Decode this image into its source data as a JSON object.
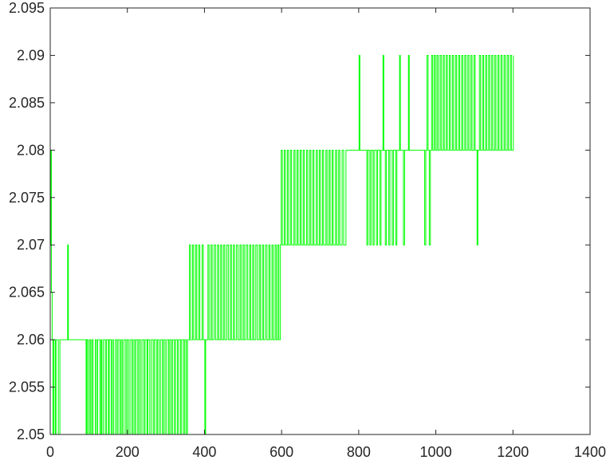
{
  "chart_data": {
    "type": "line",
    "title": "",
    "xlabel": "",
    "ylabel": "",
    "xlim": [
      0,
      1400
    ],
    "ylim": [
      2.05,
      2.095
    ],
    "x_ticks": [
      "0",
      "200",
      "400",
      "600",
      "800",
      "1000",
      "1200",
      "1400"
    ],
    "y_ticks": [
      "2.05",
      "2.055",
      "2.06",
      "2.065",
      "2.07",
      "2.075",
      "2.08",
      "2.085",
      "2.09",
      "2.095"
    ],
    "grid": false,
    "legend": "none",
    "line_color": "#00ff00",
    "x_start": 1,
    "x_step": 1,
    "levels": [
      2.05,
      2.06,
      2.07,
      2.08,
      2.09
    ],
    "segments": [
      [
        0,
        2.07
      ],
      [
        1,
        2.08
      ],
      [
        2,
        2.065
      ],
      [
        4,
        2.06
      ],
      [
        6,
        2.05
      ],
      [
        8,
        2.06
      ],
      [
        12,
        2.05
      ],
      [
        14,
        2.06
      ],
      [
        20,
        2.05
      ],
      [
        24,
        2.06
      ],
      [
        44,
        2.07
      ],
      [
        46,
        2.06
      ],
      [
        92,
        2.05
      ],
      [
        94,
        2.06
      ],
      [
        97,
        2.05
      ],
      [
        101,
        2.06
      ],
      [
        104,
        2.05
      ],
      [
        107,
        2.06
      ],
      [
        110,
        2.05
      ],
      [
        116,
        2.06
      ],
      [
        119,
        2.05
      ],
      [
        122,
        2.06
      ],
      [
        128,
        2.05
      ],
      [
        131,
        2.06
      ],
      [
        133,
        2.05
      ],
      [
        137,
        2.06
      ],
      [
        142,
        2.05
      ],
      [
        145,
        2.06
      ],
      [
        150,
        2.05
      ],
      [
        152,
        2.06
      ],
      [
        157,
        2.05
      ],
      [
        160,
        2.06
      ],
      [
        163,
        2.05
      ],
      [
        168,
        2.06
      ],
      [
        172,
        2.05
      ],
      [
        175,
        2.06
      ],
      [
        180,
        2.05
      ],
      [
        183,
        2.06
      ],
      [
        186,
        2.05
      ],
      [
        190,
        2.06
      ],
      [
        195,
        2.05
      ],
      [
        198,
        2.06
      ],
      [
        202,
        2.05
      ],
      [
        206,
        2.06
      ],
      [
        211,
        2.05
      ],
      [
        214,
        2.06
      ],
      [
        218,
        2.05
      ],
      [
        221,
        2.06
      ],
      [
        226,
        2.05
      ],
      [
        229,
        2.06
      ],
      [
        233,
        2.05
      ],
      [
        237,
        2.06
      ],
      [
        242,
        2.05
      ],
      [
        245,
        2.06
      ],
      [
        250,
        2.05
      ],
      [
        252,
        2.06
      ],
      [
        257,
        2.05
      ],
      [
        261,
        2.06
      ],
      [
        266,
        2.05
      ],
      [
        269,
        2.06
      ],
      [
        274,
        2.05
      ],
      [
        277,
        2.06
      ],
      [
        281,
        2.05
      ],
      [
        285,
        2.06
      ],
      [
        290,
        2.05
      ],
      [
        293,
        2.06
      ],
      [
        297,
        2.05
      ],
      [
        301,
        2.06
      ],
      [
        306,
        2.05
      ],
      [
        309,
        2.06
      ],
      [
        313,
        2.05
      ],
      [
        316,
        2.06
      ],
      [
        321,
        2.05
      ],
      [
        324,
        2.06
      ],
      [
        329,
        2.05
      ],
      [
        332,
        2.06
      ],
      [
        337,
        2.05
      ],
      [
        340,
        2.06
      ],
      [
        345,
        2.05
      ],
      [
        348,
        2.06
      ],
      [
        352,
        2.05
      ],
      [
        355,
        2.06
      ],
      [
        360,
        2.07
      ],
      [
        363,
        2.06
      ],
      [
        368,
        2.07
      ],
      [
        371,
        2.06
      ],
      [
        376,
        2.07
      ],
      [
        379,
        2.06
      ],
      [
        384,
        2.07
      ],
      [
        387,
        2.06
      ],
      [
        393,
        2.07
      ],
      [
        396,
        2.06
      ],
      [
        400,
        2.05
      ],
      [
        402,
        2.06
      ],
      [
        408,
        2.07
      ],
      [
        411,
        2.06
      ],
      [
        416,
        2.07
      ],
      [
        419,
        2.06
      ],
      [
        424,
        2.07
      ],
      [
        428,
        2.06
      ],
      [
        433,
        2.07
      ],
      [
        436,
        2.06
      ],
      [
        441,
        2.07
      ],
      [
        444,
        2.06
      ],
      [
        449,
        2.07
      ],
      [
        452,
        2.06
      ],
      [
        457,
        2.07
      ],
      [
        461,
        2.06
      ],
      [
        466,
        2.07
      ],
      [
        469,
        2.06
      ],
      [
        474,
        2.07
      ],
      [
        477,
        2.06
      ],
      [
        482,
        2.07
      ],
      [
        486,
        2.06
      ],
      [
        491,
        2.07
      ],
      [
        494,
        2.06
      ],
      [
        499,
        2.07
      ],
      [
        502,
        2.06
      ],
      [
        507,
        2.07
      ],
      [
        511,
        2.06
      ],
      [
        516,
        2.07
      ],
      [
        519,
        2.06
      ],
      [
        524,
        2.07
      ],
      [
        527,
        2.06
      ],
      [
        532,
        2.07
      ],
      [
        536,
        2.06
      ],
      [
        541,
        2.07
      ],
      [
        544,
        2.06
      ],
      [
        549,
        2.07
      ],
      [
        552,
        2.06
      ],
      [
        557,
        2.07
      ],
      [
        561,
        2.06
      ],
      [
        566,
        2.07
      ],
      [
        569,
        2.06
      ],
      [
        574,
        2.07
      ],
      [
        577,
        2.06
      ],
      [
        582,
        2.07
      ],
      [
        585,
        2.06
      ],
      [
        589,
        2.07
      ],
      [
        592,
        2.06
      ],
      [
        596,
        2.07
      ],
      [
        598,
        2.08
      ],
      [
        601,
        2.07
      ],
      [
        606,
        2.08
      ],
      [
        609,
        2.07
      ],
      [
        614,
        2.08
      ],
      [
        617,
        2.07
      ],
      [
        622,
        2.08
      ],
      [
        625,
        2.07
      ],
      [
        631,
        2.08
      ],
      [
        634,
        2.07
      ],
      [
        639,
        2.08
      ],
      [
        642,
        2.07
      ],
      [
        647,
        2.08
      ],
      [
        650,
        2.07
      ],
      [
        655,
        2.08
      ],
      [
        658,
        2.07
      ],
      [
        664,
        2.08
      ],
      [
        667,
        2.07
      ],
      [
        672,
        2.08
      ],
      [
        675,
        2.07
      ],
      [
        680,
        2.08
      ],
      [
        683,
        2.07
      ],
      [
        689,
        2.08
      ],
      [
        692,
        2.07
      ],
      [
        697,
        2.08
      ],
      [
        700,
        2.07
      ],
      [
        705,
        2.08
      ],
      [
        708,
        2.07
      ],
      [
        714,
        2.08
      ],
      [
        717,
        2.07
      ],
      [
        722,
        2.08
      ],
      [
        725,
        2.07
      ],
      [
        730,
        2.08
      ],
      [
        733,
        2.07
      ],
      [
        739,
        2.08
      ],
      [
        742,
        2.07
      ],
      [
        747,
        2.08
      ],
      [
        750,
        2.07
      ],
      [
        756,
        2.08
      ],
      [
        760,
        2.07
      ],
      [
        766,
        2.08
      ],
      [
        820,
        2.07
      ],
      [
        823,
        2.08
      ],
      [
        800,
        2.09
      ],
      [
        802,
        2.08
      ],
      [
        828,
        2.07
      ],
      [
        831,
        2.08
      ],
      [
        836,
        2.07
      ],
      [
        839,
        2.08
      ],
      [
        845,
        2.07
      ],
      [
        848,
        2.08
      ],
      [
        854,
        2.07
      ],
      [
        857,
        2.08
      ],
      [
        862,
        2.09
      ],
      [
        864,
        2.08
      ],
      [
        868,
        2.07
      ],
      [
        871,
        2.08
      ],
      [
        877,
        2.07
      ],
      [
        880,
        2.08
      ],
      [
        886,
        2.07
      ],
      [
        889,
        2.08
      ],
      [
        895,
        2.07
      ],
      [
        898,
        2.08
      ],
      [
        905,
        2.09
      ],
      [
        907,
        2.08
      ],
      [
        915,
        2.07
      ],
      [
        918,
        2.08
      ],
      [
        928,
        2.09
      ],
      [
        930,
        2.08
      ],
      [
        970,
        2.07
      ],
      [
        973,
        2.08
      ],
      [
        976,
        2.09
      ],
      [
        979,
        2.08
      ],
      [
        982,
        2.07
      ],
      [
        985,
        2.08
      ],
      [
        988,
        2.09
      ],
      [
        991,
        2.08
      ],
      [
        995,
        2.09
      ],
      [
        998,
        2.08
      ],
      [
        1002,
        2.09
      ],
      [
        1005,
        2.08
      ],
      [
        1010,
        2.09
      ],
      [
        1013,
        2.08
      ],
      [
        1018,
        2.09
      ],
      [
        1021,
        2.08
      ],
      [
        1026,
        2.09
      ],
      [
        1029,
        2.08
      ],
      [
        1034,
        2.09
      ],
      [
        1037,
        2.08
      ],
      [
        1042,
        2.09
      ],
      [
        1045,
        2.08
      ],
      [
        1050,
        2.09
      ],
      [
        1053,
        2.08
      ],
      [
        1058,
        2.09
      ],
      [
        1061,
        2.08
      ],
      [
        1066,
        2.09
      ],
      [
        1069,
        2.08
      ],
      [
        1074,
        2.09
      ],
      [
        1077,
        2.08
      ],
      [
        1082,
        2.09
      ],
      [
        1085,
        2.08
      ],
      [
        1090,
        2.09
      ],
      [
        1093,
        2.08
      ],
      [
        1098,
        2.09
      ],
      [
        1101,
        2.08
      ],
      [
        1106,
        2.07
      ],
      [
        1108,
        2.08
      ],
      [
        1112,
        2.09
      ],
      [
        1115,
        2.08
      ],
      [
        1120,
        2.09
      ],
      [
        1123,
        2.08
      ],
      [
        1128,
        2.09
      ],
      [
        1131,
        2.08
      ],
      [
        1136,
        2.09
      ],
      [
        1139,
        2.08
      ],
      [
        1144,
        2.09
      ],
      [
        1147,
        2.08
      ],
      [
        1152,
        2.09
      ],
      [
        1155,
        2.08
      ],
      [
        1160,
        2.09
      ],
      [
        1163,
        2.08
      ],
      [
        1168,
        2.09
      ],
      [
        1171,
        2.08
      ],
      [
        1176,
        2.09
      ],
      [
        1179,
        2.08
      ],
      [
        1184,
        2.09
      ],
      [
        1187,
        2.08
      ],
      [
        1192,
        2.09
      ],
      [
        1195,
        2.08
      ],
      [
        1200,
        2.09
      ]
    ]
  }
}
